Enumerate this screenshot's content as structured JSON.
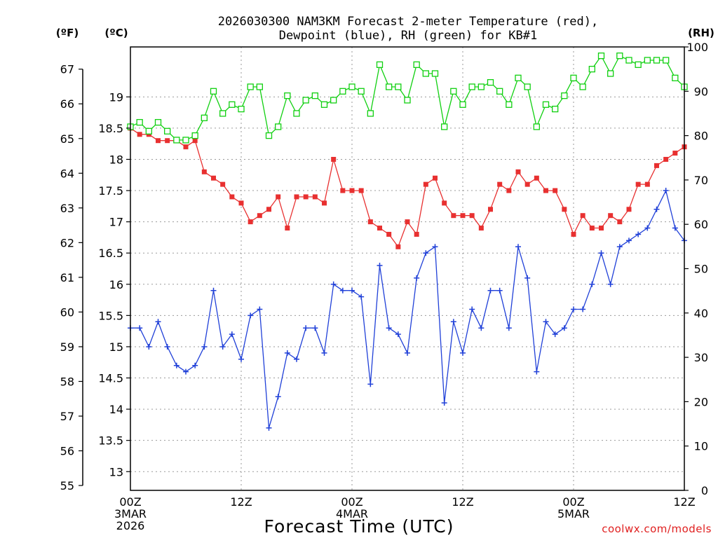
{
  "chart_data": {
    "type": "line",
    "title_lines": [
      "2026030300 NAM3KM Forecast 2-meter Temperature (red),",
      "Dewpoint (blue), RH (green) for KB#1"
    ],
    "xlabel": "Forecast Time (UTC)",
    "credit": "coolwx.com/models",
    "units": {
      "fahrenheit": "(ºF)",
      "celsius": "(ºC)",
      "rh": "(RH)"
    },
    "x_range": [
      0,
      60
    ],
    "celsius_range": [
      12.7,
      19.8
    ],
    "x_ticks": [
      {
        "hour": 0,
        "lines": [
          "00Z",
          "3MAR",
          "2026"
        ]
      },
      {
        "hour": 12,
        "lines": [
          "12Z"
        ]
      },
      {
        "hour": 24,
        "lines": [
          "00Z",
          "4MAR"
        ]
      },
      {
        "hour": 36,
        "lines": [
          "12Z"
        ]
      },
      {
        "hour": 48,
        "lines": [
          "00Z",
          "5MAR"
        ]
      },
      {
        "hour": 60,
        "lines": [
          "12Z"
        ]
      }
    ],
    "celsius_ticks": [
      "13",
      "13.5",
      "14",
      "14.5",
      "15",
      "15.5",
      "16",
      "16.5",
      "17",
      "17.5",
      "18",
      "18.5",
      "19"
    ],
    "fahrenheit_ticks": [
      "55",
      "56",
      "57",
      "58",
      "59",
      "60",
      "61",
      "62",
      "63",
      "64",
      "65",
      "66",
      "67"
    ],
    "rh_range": [
      0,
      100
    ],
    "rh_ticks": [
      "0",
      "10",
      "20",
      "30",
      "40",
      "50",
      "60",
      "70",
      "80",
      "90",
      "100"
    ],
    "series": [
      {
        "name": "Temperature (°C)",
        "color": "#e83030",
        "marker": "filled-square",
        "axis": "celsius",
        "values": [
          18.5,
          18.4,
          18.4,
          18.3,
          18.3,
          18.3,
          18.2,
          18.3,
          17.8,
          17.7,
          17.6,
          17.4,
          17.3,
          17.0,
          17.1,
          17.2,
          17.4,
          16.9,
          17.4,
          17.4,
          17.4,
          17.3,
          18.0,
          17.5,
          17.5,
          17.5,
          17.0,
          16.9,
          16.8,
          16.6,
          17.0,
          16.8,
          17.6,
          17.7,
          17.3,
          17.1,
          17.1,
          17.1,
          16.9,
          17.2,
          17.6,
          17.5,
          17.8,
          17.6,
          17.7,
          17.5,
          17.5,
          17.2,
          16.8,
          17.1,
          16.9,
          16.9,
          17.1,
          17.0,
          17.2,
          17.6,
          17.6,
          17.9,
          18.0,
          18.1,
          18.2
        ]
      },
      {
        "name": "Dewpoint (°C)",
        "color": "#2040d8",
        "marker": "plus",
        "axis": "celsius",
        "values": [
          15.3,
          15.3,
          15.0,
          15.4,
          15.0,
          14.7,
          14.6,
          14.7,
          15.0,
          15.9,
          15.0,
          15.2,
          14.8,
          15.5,
          15.6,
          13.7,
          14.2,
          14.9,
          14.8,
          15.3,
          15.3,
          14.9,
          16.0,
          15.9,
          15.9,
          15.8,
          14.4,
          16.3,
          15.3,
          15.2,
          14.9,
          16.1,
          16.5,
          16.6,
          14.1,
          15.4,
          14.9,
          15.6,
          15.3,
          15.9,
          15.9,
          15.3,
          16.6,
          16.1,
          14.6,
          15.4,
          15.2,
          15.3,
          15.6,
          15.6,
          16.0,
          16.5,
          16.0,
          16.6,
          16.7,
          16.8,
          16.9,
          17.2,
          17.5,
          16.9,
          16.7
        ]
      },
      {
        "name": "RH (%)",
        "color": "#10d010",
        "marker": "open-square",
        "axis": "rh",
        "values": [
          82,
          83,
          81,
          83,
          81,
          79,
          79,
          80,
          84,
          90,
          85,
          87,
          86,
          91,
          91,
          80,
          82,
          89,
          85,
          88,
          89,
          87,
          88,
          90,
          91,
          90,
          85,
          96,
          91,
          91,
          88,
          96,
          94,
          94,
          82,
          90,
          87,
          91,
          91,
          92,
          90,
          87,
          93,
          91,
          82,
          87,
          86,
          89,
          93,
          91,
          95,
          98,
          94,
          98,
          97,
          96,
          97,
          97,
          97,
          93,
          91
        ]
      }
    ]
  }
}
